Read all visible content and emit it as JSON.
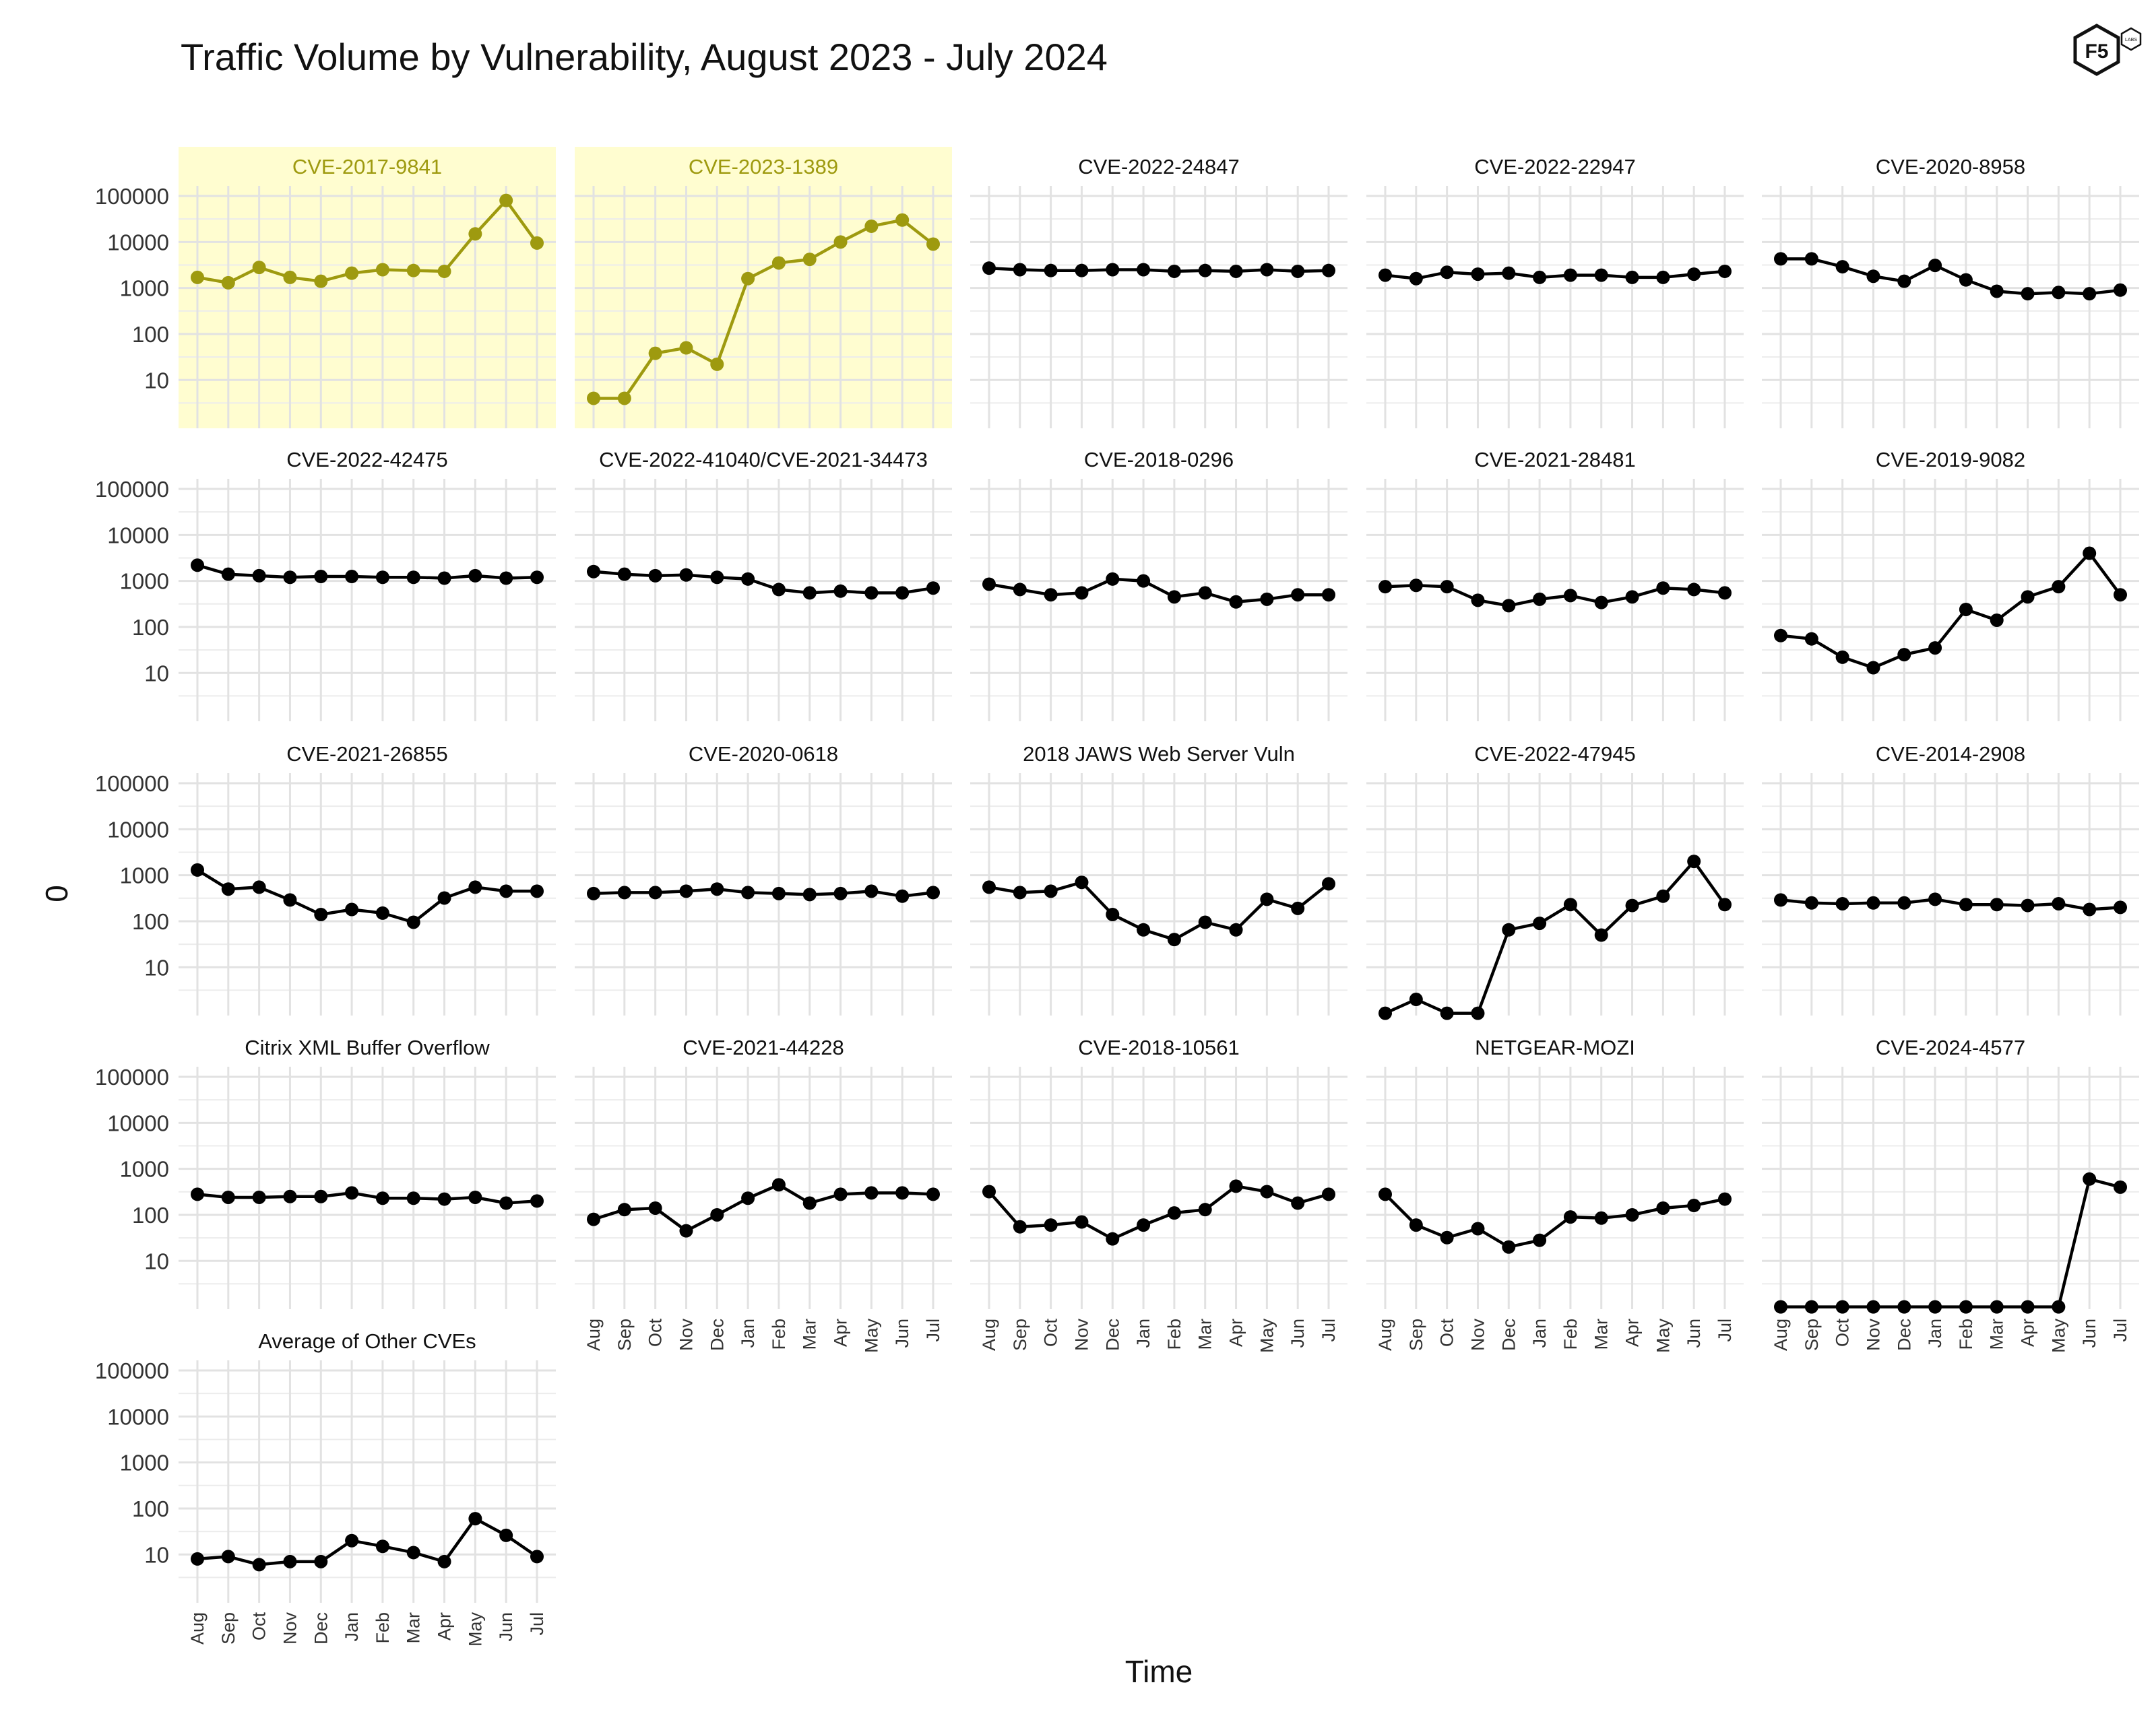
{
  "logo_text": "F5",
  "logo_subtext": "LABS",
  "chart_data": {
    "type": "line",
    "title": "Traffic Volume by Vulnerability, August 2023 - July 2024",
    "xlabel": "Time",
    "ylabel": "0",
    "y_scale": "log10",
    "y_ticks": [
      10,
      100,
      1000,
      10000,
      100000
    ],
    "y_tick_labels": [
      "10",
      "100",
      "1000",
      "10000",
      "100000"
    ],
    "categories": [
      "Aug",
      "Sep",
      "Oct",
      "Nov",
      "Dec",
      "Jan",
      "Feb",
      "Mar",
      "Apr",
      "May",
      "Jun",
      "Jul"
    ],
    "grid": true,
    "highlight_color": "#fffdd0",
    "highlight_line_color": "#9e9a0f",
    "default_line_color": "#000000",
    "panels": [
      {
        "name": "CVE-2017-9841",
        "highlight": true,
        "values": [
          1700,
          1300,
          2800,
          1700,
          1400,
          2100,
          2500,
          2400,
          2300,
          15000,
          80000,
          9500
        ]
      },
      {
        "name": "CVE-2023-1389",
        "highlight": true,
        "values": [
          4,
          4,
          38,
          50,
          22,
          1600,
          3500,
          4200,
          10000,
          22000,
          30000,
          9000
        ]
      },
      {
        "name": "CVE-2022-24847",
        "highlight": false,
        "values": [
          2700,
          2500,
          2400,
          2400,
          2500,
          2500,
          2300,
          2400,
          2300,
          2500,
          2300,
          2400
        ]
      },
      {
        "name": "CVE-2022-22947",
        "highlight": false,
        "values": [
          1900,
          1600,
          2200,
          2000,
          2100,
          1700,
          1900,
          1900,
          1700,
          1700,
          2000,
          2300
        ]
      },
      {
        "name": "CVE-2020-8958",
        "highlight": false,
        "values": [
          4300,
          4300,
          2900,
          1800,
          1400,
          3100,
          1500,
          850,
          750,
          800,
          750,
          900
        ]
      },
      {
        "name": "CVE-2022-42475",
        "highlight": false,
        "values": [
          2200,
          1400,
          1300,
          1200,
          1250,
          1250,
          1200,
          1200,
          1150,
          1300,
          1150,
          1200
        ]
      },
      {
        "name": "CVE-2022-41040/CVE-2021-34473",
        "highlight": false,
        "values": [
          1600,
          1400,
          1300,
          1350,
          1200,
          1100,
          650,
          550,
          600,
          550,
          550,
          700
        ]
      },
      {
        "name": "CVE-2018-0296",
        "highlight": false,
        "values": [
          850,
          650,
          500,
          550,
          1100,
          1000,
          450,
          550,
          350,
          400,
          500,
          500
        ]
      },
      {
        "name": "CVE-2021-28481",
        "highlight": false,
        "values": [
          750,
          800,
          750,
          380,
          290,
          400,
          480,
          340,
          450,
          700,
          650,
          550
        ]
      },
      {
        "name": "CVE-2019-9082",
        "highlight": false,
        "values": [
          65,
          55,
          22,
          13,
          25,
          35,
          240,
          140,
          450,
          750,
          4000,
          500
        ]
      },
      {
        "name": "CVE-2021-26855",
        "highlight": false,
        "values": [
          1300,
          500,
          550,
          290,
          140,
          180,
          150,
          95,
          320,
          550,
          450,
          450
        ]
      },
      {
        "name": "CVE-2020-0618",
        "highlight": false,
        "values": [
          400,
          420,
          420,
          450,
          500,
          420,
          400,
          380,
          400,
          450,
          350,
          420
        ]
      },
      {
        "name": "2018 JAWS Web Server Vuln",
        "highlight": false,
        "values": [
          550,
          420,
          450,
          700,
          140,
          65,
          40,
          95,
          65,
          300,
          190,
          650
        ]
      },
      {
        "name": "CVE-2022-47945",
        "highlight": false,
        "values": [
          1,
          2,
          1,
          1,
          65,
          90,
          230,
          50,
          220,
          350,
          2000,
          230
        ]
      },
      {
        "name": "CVE-2014-2908",
        "highlight": false,
        "values": [
          290,
          250,
          240,
          250,
          250,
          300,
          230,
          230,
          220,
          240,
          180,
          200
        ]
      },
      {
        "name": "Citrix XML Buffer Overflow",
        "highlight": false,
        "values": [
          280,
          240,
          240,
          250,
          250,
          300,
          230,
          230,
          220,
          240,
          180,
          200
        ]
      },
      {
        "name": "CVE-2021-44228",
        "highlight": false,
        "values": [
          80,
          130,
          140,
          45,
          100,
          230,
          450,
          180,
          280,
          300,
          300,
          280
        ]
      },
      {
        "name": "CVE-2018-10561",
        "highlight": false,
        "values": [
          320,
          55,
          60,
          70,
          30,
          60,
          110,
          130,
          420,
          320,
          180,
          280
        ]
      },
      {
        "name": "NETGEAR-MOZI",
        "highlight": false,
        "values": [
          280,
          60,
          32,
          50,
          20,
          28,
          90,
          85,
          100,
          140,
          160,
          220
        ]
      },
      {
        "name": "CVE-2024-4577",
        "highlight": false,
        "values": [
          1,
          1,
          1,
          1,
          1,
          1,
          1,
          1,
          1,
          1,
          600,
          400
        ]
      },
      {
        "name": "Average of Other CVEs",
        "highlight": false,
        "values": [
          8,
          9,
          6,
          7,
          7,
          20,
          15,
          11,
          7,
          60,
          26,
          9
        ]
      }
    ]
  }
}
